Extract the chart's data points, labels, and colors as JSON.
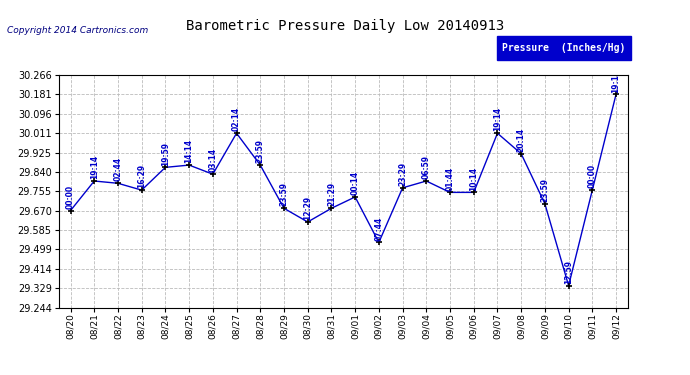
{
  "title": "Barometric Pressure Daily Low 20140913",
  "copyright": "Copyright 2014 Cartronics.com",
  "legend_label": "Pressure  (Inches/Hg)",
  "dates": [
    "08/20",
    "08/21",
    "08/22",
    "08/23",
    "08/24",
    "08/25",
    "08/26",
    "08/27",
    "08/28",
    "08/29",
    "08/30",
    "08/31",
    "09/01",
    "09/02",
    "09/03",
    "09/04",
    "09/05",
    "09/06",
    "09/07",
    "09/08",
    "09/09",
    "09/10",
    "09/11",
    "09/12"
  ],
  "values": [
    29.67,
    29.8,
    29.79,
    29.76,
    29.86,
    29.87,
    29.83,
    30.01,
    29.87,
    29.68,
    29.62,
    29.68,
    29.73,
    29.53,
    29.77,
    29.8,
    29.75,
    29.75,
    30.01,
    29.92,
    29.7,
    29.34,
    29.76,
    30.181
  ],
  "time_labels": [
    "00:00",
    "19:14",
    "02:44",
    "16:29",
    "19:59",
    "14:14",
    "03:14",
    "02:14",
    "23:59",
    "23:59",
    "12:29",
    "21:29",
    "00:14",
    "07:44",
    "23:29",
    "06:59",
    "01:44",
    "10:14",
    "19:14",
    "20:14",
    "23:59",
    "12:59",
    "00:00",
    "19:1"
  ],
  "line_color": "#0000cc",
  "marker_color": "#000000",
  "background_color": "#ffffff",
  "grid_color": "#bbbbbb",
  "title_color": "#000000",
  "legend_bg": "#0000cc",
  "legend_text": "#ffffff",
  "ylim_min": 29.244,
  "ylim_max": 30.266,
  "yticks": [
    29.244,
    29.329,
    29.414,
    29.499,
    29.585,
    29.67,
    29.755,
    29.84,
    29.925,
    30.011,
    30.096,
    30.181,
    30.266
  ]
}
